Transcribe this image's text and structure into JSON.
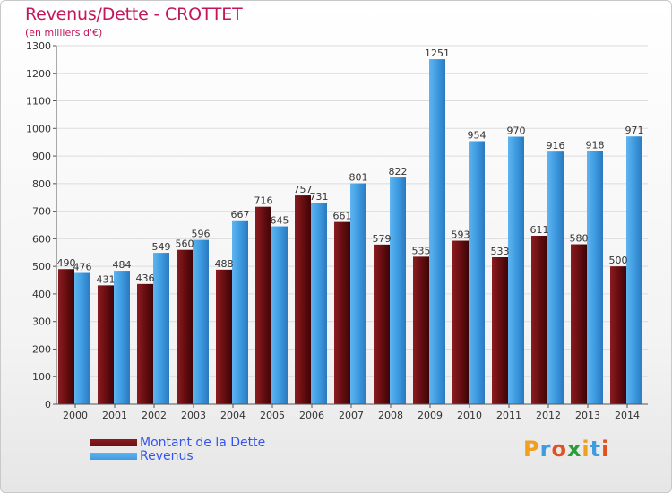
{
  "title": "Revenus/Dette - CROTTET",
  "subtitle": "(en milliers d'€)",
  "colors": {
    "dette": "#6b0f12",
    "revenus": "#3d9be0",
    "title": "#c2185b",
    "legend_text": "#3355ee"
  },
  "chart_data": {
    "type": "bar",
    "categories": [
      "2000",
      "2001",
      "2002",
      "2003",
      "2004",
      "2005",
      "2006",
      "2007",
      "2008",
      "2009",
      "2010",
      "2011",
      "2012",
      "2013",
      "2014"
    ],
    "series": [
      {
        "name": "Montant de la Dette",
        "values": [
          490,
          431,
          436,
          560,
          488,
          716,
          757,
          661,
          579,
          535,
          593,
          533,
          611,
          580,
          500
        ]
      },
      {
        "name": "Revenus",
        "values": [
          476,
          484,
          549,
          596,
          667,
          645,
          731,
          801,
          822,
          1251,
          954,
          970,
          916,
          918,
          971
        ]
      }
    ],
    "data_labels": {
      "dette": [
        "490",
        "431",
        "436",
        "560",
        "488",
        "716",
        "757",
        "661",
        "579",
        "535",
        "593",
        "533",
        "611",
        "580",
        "500"
      ],
      "revenus": [
        "476",
        "484",
        "549",
        "596",
        "667",
        "645",
        "731",
        "801",
        "822",
        "1251",
        "954",
        "970",
        "916",
        "918",
        "971"
      ]
    },
    "ylim": [
      0,
      1300
    ],
    "yticks": [
      "0",
      "100",
      "200",
      "300",
      "400",
      "500",
      "600",
      "700",
      "800",
      "900",
      "1000",
      "1100",
      "1200",
      "1300"
    ],
    "grid": true,
    "legend_position": "bottom-left"
  },
  "legend": [
    {
      "label": "Montant de la Dette",
      "color": "#6b0f12"
    },
    {
      "label": "Revenus",
      "color": "#3d9be0"
    }
  ],
  "logo": {
    "letters": [
      "P",
      "r",
      "o",
      "x",
      "i",
      "t",
      "i"
    ],
    "colors": [
      "#f0a020",
      "#3d9be0",
      "#e05020",
      "#2a9d3a",
      "#f0a020",
      "#3d9be0",
      "#e05020"
    ]
  }
}
